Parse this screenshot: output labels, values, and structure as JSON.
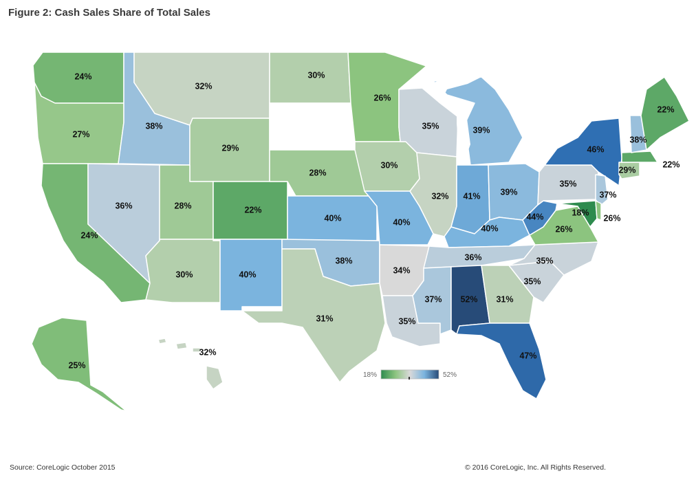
{
  "title": "Figure 2: Cash Sales Share of Total Sales",
  "footer": {
    "source": "Source: CoreLogic October 2015",
    "copyright": "© 2016 CoreLogic, Inc. All Rights Reserved."
  },
  "legend": {
    "min_label": "18%",
    "max_label": "52%",
    "min_value": 18,
    "max_value": 52,
    "colors": [
      "#2e8b4e",
      "#8cc47f",
      "#d9d9d9",
      "#7bb4de",
      "#2f6fb3",
      "#274b78"
    ]
  },
  "states": [
    {
      "code": "WA",
      "value": 24,
      "label": "24%"
    },
    {
      "code": "OR",
      "value": 27,
      "label": "27%"
    },
    {
      "code": "CA",
      "value": 24,
      "label": "24%"
    },
    {
      "code": "ID",
      "value": 38,
      "label": "38%"
    },
    {
      "code": "NV",
      "value": 36,
      "label": "36%"
    },
    {
      "code": "MT",
      "value": 32,
      "label": "32%"
    },
    {
      "code": "WY",
      "value": 29,
      "label": "29%"
    },
    {
      "code": "UT",
      "value": 28,
      "label": "28%"
    },
    {
      "code": "AZ",
      "value": 30,
      "label": "30%"
    },
    {
      "code": "CO",
      "value": 22,
      "label": "22%"
    },
    {
      "code": "NM",
      "value": 40,
      "label": "40%"
    },
    {
      "code": "ND",
      "value": 30,
      "label": "30%"
    },
    {
      "code": "SD",
      "value": null,
      "label": ""
    },
    {
      "code": "NE",
      "value": 28,
      "label": "28%"
    },
    {
      "code": "KS",
      "value": 40,
      "label": "40%"
    },
    {
      "code": "OK",
      "value": 38,
      "label": "38%"
    },
    {
      "code": "TX",
      "value": 31,
      "label": "31%"
    },
    {
      "code": "MN",
      "value": 26,
      "label": "26%"
    },
    {
      "code": "IA",
      "value": 30,
      "label": "30%"
    },
    {
      "code": "MO",
      "value": 40,
      "label": "40%"
    },
    {
      "code": "AR",
      "value": 34,
      "label": "34%"
    },
    {
      "code": "LA",
      "value": 35,
      "label": "35%"
    },
    {
      "code": "WI",
      "value": 35,
      "label": "35%"
    },
    {
      "code": "IL",
      "value": 32,
      "label": "32%"
    },
    {
      "code": "MI",
      "value": 39,
      "label": "39%"
    },
    {
      "code": "IN",
      "value": 41,
      "label": "41%"
    },
    {
      "code": "OH",
      "value": 39,
      "label": "39%"
    },
    {
      "code": "KY",
      "value": 40,
      "label": "40%"
    },
    {
      "code": "TN",
      "value": 36,
      "label": "36%"
    },
    {
      "code": "MS",
      "value": 37,
      "label": "37%"
    },
    {
      "code": "AL",
      "value": 52,
      "label": "52%"
    },
    {
      "code": "GA",
      "value": 31,
      "label": "31%"
    },
    {
      "code": "FL",
      "value": 47,
      "label": "47%"
    },
    {
      "code": "SC",
      "value": 35,
      "label": "35%"
    },
    {
      "code": "NC",
      "value": 35,
      "label": "35%"
    },
    {
      "code": "VA",
      "value": 26,
      "label": "26%"
    },
    {
      "code": "WV",
      "value": 44,
      "label": "44%"
    },
    {
      "code": "PA",
      "value": 35,
      "label": "35%"
    },
    {
      "code": "NY",
      "value": 46,
      "label": "46%"
    },
    {
      "code": "NJ",
      "value": 37,
      "label": "37%"
    },
    {
      "code": "MD",
      "value": 18,
      "label": "18%"
    },
    {
      "code": "DE",
      "value": 26,
      "label": "26%"
    },
    {
      "code": "CT",
      "value": 29,
      "label": "29%"
    },
    {
      "code": "MA",
      "value": 22,
      "label": "22%"
    },
    {
      "code": "NH",
      "value": 38,
      "label": "38%"
    },
    {
      "code": "ME",
      "value": 22,
      "label": "22%"
    },
    {
      "code": "AK",
      "value": 25,
      "label": "25%"
    },
    {
      "code": "HI",
      "value": 32,
      "label": "32%"
    }
  ]
}
